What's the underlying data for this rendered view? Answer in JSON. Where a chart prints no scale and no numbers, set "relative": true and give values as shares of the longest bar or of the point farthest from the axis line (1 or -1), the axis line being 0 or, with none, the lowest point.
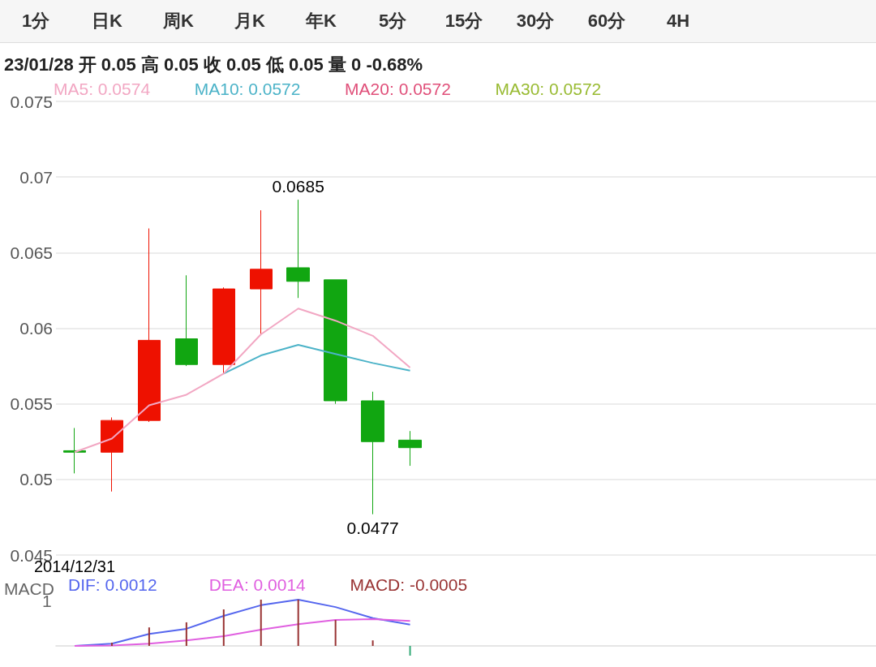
{
  "chart_data": [
    {
      "type": "candlestick",
      "title": "23/01/28 开 0.05 高 0.05 收 0.05 低 0.05 量 0 -0.68%",
      "categories": [
        "2014/12/31",
        null,
        null,
        null,
        null,
        null,
        null,
        null,
        null,
        null,
        null,
        null,
        null,
        null,
        null,
        null,
        null,
        null,
        null,
        null,
        null,
        null
      ],
      "ohlc": [
        [
          0.0519,
          0.0534,
          0.0504,
          0.0518
        ],
        [
          0.0518,
          0.0541,
          0.0492,
          0.0539
        ],
        [
          0.0539,
          0.0666,
          0.0538,
          0.0592
        ],
        [
          0.0593,
          0.0635,
          0.0575,
          0.0576
        ],
        [
          0.0576,
          0.0627,
          0.057,
          0.0626
        ],
        [
          0.0626,
          0.0678,
          0.0596,
          0.0639
        ],
        [
          0.064,
          0.0685,
          0.062,
          0.0631
        ],
        [
          0.0632,
          0.0632,
          0.055,
          0.0552
        ],
        [
          0.0552,
          0.0558,
          0.0477,
          0.0525
        ],
        [
          0.0526,
          0.0532,
          0.0509,
          0.0521
        ],
        null,
        null,
        null,
        null,
        null,
        null,
        null,
        null,
        null,
        null,
        null,
        null
      ],
      "colors": [
        "#11a611",
        "#ee1100",
        "#ee1100",
        "#11a611",
        "#ee1100",
        "#ee1100",
        "#11a611",
        "#11a611",
        "#11a611",
        "#11a611",
        null,
        null,
        null,
        null,
        null,
        null,
        null,
        null,
        null,
        null,
        null,
        null
      ],
      "value_labels": [
        null,
        null,
        null,
        null,
        null,
        null,
        "0.0685",
        null,
        "0.0477",
        null,
        null,
        null,
        null,
        null,
        null,
        null,
        null,
        null,
        null,
        null,
        null,
        null
      ],
      "series": [
        {
          "name": "MA5: 0.0574",
          "type": "line",
          "color": "#f2a7c3",
          "values": [
            0.0518,
            0.0527,
            0.0549,
            0.0556,
            0.057,
            0.0596,
            0.0613,
            0.0605,
            0.0595,
            0.0574,
            null,
            null,
            null,
            null,
            null,
            null,
            null,
            null,
            null,
            null,
            null,
            null
          ]
        },
        {
          "name": "MA10: 0.0572",
          "type": "line",
          "color": "#4cb3c8",
          "values": [
            null,
            null,
            null,
            null,
            0.057,
            0.0582,
            0.0589,
            0.0583,
            0.0577,
            0.0572,
            null,
            null,
            null,
            null,
            null,
            null,
            null,
            null,
            null,
            null,
            null,
            null
          ]
        },
        {
          "name": "MA20: 0.0572",
          "type": "line",
          "color": "#e0507a",
          "values": [
            null,
            null,
            null,
            null,
            null,
            null,
            null,
            null,
            null,
            null,
            null,
            null,
            null,
            null,
            null,
            null,
            null,
            null,
            null,
            null,
            null,
            null
          ]
        },
        {
          "name": "MA30: 0.0572",
          "type": "line",
          "color": "#99bb33",
          "values": [
            null,
            null,
            null,
            null,
            null,
            null,
            null,
            null,
            null,
            null,
            null,
            null,
            null,
            null,
            null,
            null,
            null,
            null,
            null,
            null,
            null,
            null
          ]
        }
      ],
      "ylim": [
        0.045,
        0.075
      ],
      "yticks": [
        0.045,
        0.05,
        0.055,
        0.06,
        0.065,
        0.07,
        0.075
      ],
      "grid": "y",
      "marker": "none",
      "annotations": [
        "1分",
        "日K",
        "周K",
        "月K",
        "年K",
        "5分",
        "15分",
        "30分",
        "60分",
        "4H"
      ]
    },
    {
      "type": "line",
      "title": "MACD",
      "categories": [
        null,
        null,
        null,
        null,
        null,
        null,
        null,
        null,
        null,
        null,
        null,
        null,
        null,
        null,
        null,
        null,
        null,
        null,
        null,
        null,
        null,
        null
      ],
      "relative": true,
      "series": [
        {
          "name": "DIF: 0.0012",
          "color": "#5566ee",
          "values": [
            0,
            0.05,
            0.26,
            0.37,
            0.65,
            0.88,
            1,
            0.84,
            0.6,
            0.46,
            null,
            null,
            null,
            null,
            null,
            null,
            null,
            null,
            null,
            null,
            null,
            null
          ]
        },
        {
          "name": "DEA: 0.0014",
          "color": "#e060e0",
          "values": [
            0,
            0.01,
            0.05,
            0.12,
            0.21,
            0.35,
            0.47,
            0.56,
            0.58,
            0.54,
            null,
            null,
            null,
            null,
            null,
            null,
            null,
            null,
            null,
            null,
            null,
            null
          ]
        },
        {
          "name": "MACD: -0.0005",
          "type": "bar",
          "color": "#993333",
          "colors": [
            "#993333",
            "#993333",
            "#993333",
            "#993333",
            "#993333",
            "#993333",
            "#993333",
            "#993333",
            "#993333",
            "#33aa77",
            null,
            null,
            null,
            null,
            null,
            null,
            null,
            null,
            null,
            null,
            null,
            null
          ],
          "values": [
            null,
            0.07,
            0.4,
            0.51,
            0.79,
            1,
            1,
            0.56,
            0.12,
            -0.21,
            null,
            null,
            null,
            null,
            null,
            null,
            null,
            null,
            null,
            null,
            null,
            null
          ]
        }
      ],
      "marker": "none",
      "annotations": [
        "1"
      ]
    }
  ]
}
